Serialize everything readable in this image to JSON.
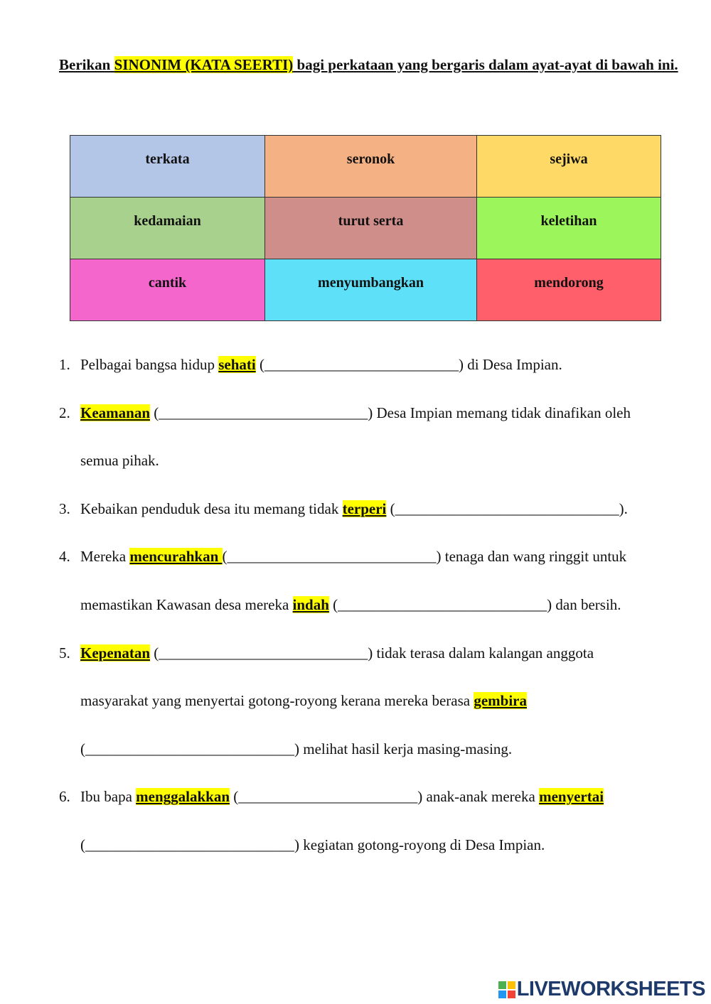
{
  "instruction": [
    "Berikan ",
    {
      "highlight": "SINONIM (KATA SEERTI)"
    },
    " bagi perkataan yang bergaris dalam ayat-ayat di bawah ini."
  ],
  "wordbank": {
    "rows": [
      [
        "terkata",
        "seronok",
        "sejiwa"
      ],
      [
        "kedamaian",
        "turut serta",
        "keletihan"
      ],
      [
        "cantik",
        "menyumbangkan",
        "mendorong"
      ]
    ]
  },
  "questions": [
    {
      "number": "1.",
      "lines": [
        [
          "Pelbagai bangsa hidup ",
          {
            "highlight": "sehati"
          },
          " (__________________________) di Desa Impian."
        ]
      ]
    },
    {
      "number": "2.",
      "lines": [
        [
          {
            "highlight": "Keamanan"
          },
          " (____________________________) Desa Impian memang tidak dinafikan oleh"
        ],
        [
          "semua pihak."
        ]
      ]
    },
    {
      "number": "3.",
      "lines": [
        [
          "Kebaikan penduduk desa itu memang tidak ",
          {
            "highlight": "terperi"
          },
          " (______________________________)."
        ]
      ]
    },
    {
      "number": "4.",
      "lines": [
        [
          "Mereka ",
          {
            "highlight": "mencurahkan "
          },
          "(____________________________) tenaga dan wang ringgit untuk"
        ],
        [
          "memastikan Kawasan desa mereka ",
          {
            "highlight": "indah"
          },
          " (____________________________) dan bersih."
        ]
      ]
    },
    {
      "number": "5.",
      "lines": [
        [
          {
            "highlight": "Kepenatan"
          },
          " (____________________________) tidak terasa dalam kalangan anggota"
        ],
        [
          "masyarakat yang menyertai gotong-royong kerana mereka berasa ",
          {
            "highlight": "gembira"
          }
        ],
        [
          "(____________________________) melihat hasil kerja masing-masing."
        ]
      ]
    },
    {
      "number": "6.",
      "lines": [
        [
          "Ibu bapa ",
          {
            "highlight": "menggalakkan"
          },
          " (________________________) anak-anak mereka ",
          {
            "highlight": "menyertai"
          }
        ],
        [
          "(____________________________) kegiatan gotong-royong di Desa Impian."
        ]
      ]
    }
  ],
  "footer": {
    "logo": "LIVEWORKSHEETS"
  }
}
